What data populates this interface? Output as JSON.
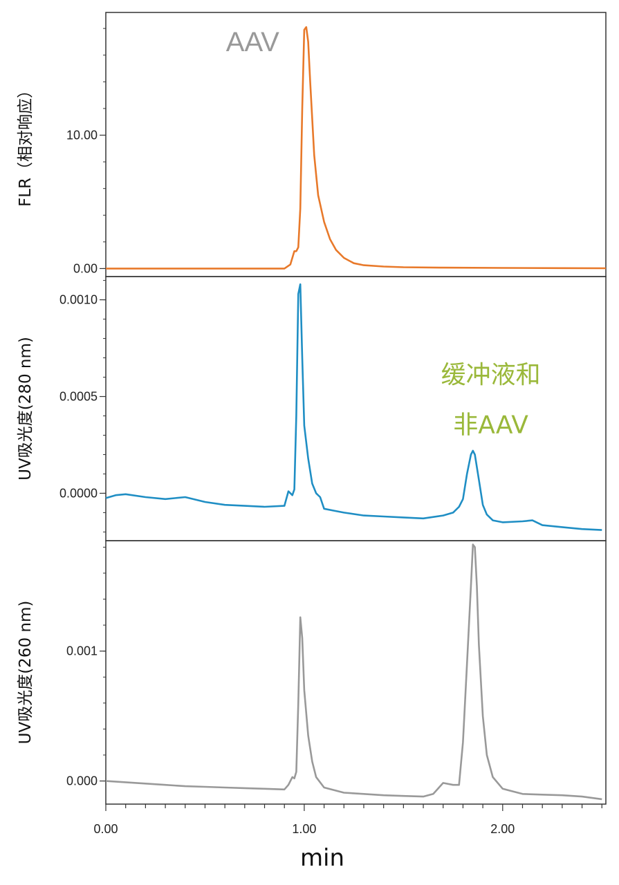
{
  "chart_data": {
    "type": "line",
    "xlabel": "min",
    "xlim": [
      0,
      2.52
    ],
    "x_ticks": [
      0,
      1,
      2
    ],
    "x_tick_labels": [
      "0.00",
      "1.00",
      "2.00"
    ],
    "panels": [
      {
        "id": "flr",
        "ylabel": "FLR（相对响应）",
        "ylim": [
          -0.6,
          19.2
        ],
        "y_ticks": [
          0,
          10
        ],
        "y_tick_labels": [
          "0.00",
          "10.00"
        ],
        "annotations": [
          {
            "text": "AAV",
            "x": 0.74,
            "y": 16.3,
            "color": "#999999"
          }
        ],
        "series": [
          {
            "color": "#E8792A",
            "x": [
              0.0,
              0.2,
              0.4,
              0.6,
              0.8,
              0.9,
              0.93,
              0.95,
              0.96,
              0.97,
              0.98,
              0.99,
              1.0,
              1.01,
              1.02,
              1.03,
              1.05,
              1.07,
              1.1,
              1.13,
              1.16,
              1.2,
              1.25,
              1.3,
              1.4,
              1.5,
              1.7,
              2.0,
              2.3,
              2.52
            ],
            "y": [
              0.0,
              0.0,
              0.0,
              0.0,
              0.0,
              0.0,
              0.3,
              1.3,
              1.3,
              1.6,
              4.5,
              12.0,
              17.9,
              18.1,
              17.0,
              14.0,
              8.5,
              5.5,
              3.5,
              2.2,
              1.4,
              0.8,
              0.4,
              0.25,
              0.15,
              0.1,
              0.07,
              0.05,
              0.03,
              0.02
            ]
          }
        ]
      },
      {
        "id": "uv280",
        "ylabel": "UV吸光度(280 nm)",
        "ylim": [
          -0.000245,
          0.00112
        ],
        "y_ticks": [
          0.0,
          0.0005,
          0.001
        ],
        "y_tick_labels": [
          "0.0000",
          "0.0005",
          "0.0010"
        ],
        "annotations": [
          {
            "text": "缓冲液和",
            "x": 1.94,
            "y": 0.00057,
            "color": "#9AB83A"
          },
          {
            "text": "非AAV",
            "x": 1.94,
            "y": 0.00031,
            "color": "#9AB83A"
          }
        ],
        "series": [
          {
            "color": "#1F8EC4",
            "x": [
              0.0,
              0.05,
              0.1,
              0.2,
              0.3,
              0.4,
              0.5,
              0.6,
              0.7,
              0.8,
              0.9,
              0.92,
              0.94,
              0.95,
              0.96,
              0.97,
              0.98,
              0.99,
              1.0,
              1.02,
              1.04,
              1.06,
              1.08,
              1.1,
              1.15,
              1.2,
              1.3,
              1.4,
              1.5,
              1.6,
              1.7,
              1.75,
              1.78,
              1.8,
              1.82,
              1.84,
              1.85,
              1.86,
              1.88,
              1.9,
              1.92,
              1.95,
              2.0,
              2.1,
              2.15,
              2.2,
              2.3,
              2.4,
              2.5
            ],
            "y": [
              -2.5e-05,
              -1e-05,
              -5e-06,
              -2e-05,
              -3e-05,
              -2e-05,
              -4.5e-05,
              -6e-05,
              -6.5e-05,
              -7e-05,
              -6.5e-05,
              1e-05,
              -1e-05,
              2e-05,
              0.0004,
              0.00103,
              0.00108,
              0.0007,
              0.00035,
              0.00018,
              5e-05,
              0.0,
              -2e-05,
              -8e-05,
              -9e-05,
              -0.0001,
              -0.000115,
              -0.00012,
              -0.000125,
              -0.00013,
              -0.000115,
              -0.0001,
              -7e-05,
              -3e-05,
              0.0001,
              0.0002,
              0.00022,
              0.0002,
              7e-05,
              -6e-05,
              -0.00011,
              -0.00014,
              -0.00015,
              -0.000145,
              -0.00014,
              -0.000165,
              -0.000175,
              -0.000185,
              -0.00019
            ]
          }
        ]
      },
      {
        "id": "uv260",
        "ylabel": "UV吸光度(260 nm)",
        "ylim": [
          -0.000178,
          0.00185
        ],
        "y_ticks": [
          0.0,
          0.001
        ],
        "y_tick_labels": [
          "0.000",
          "0.001"
        ],
        "annotations": [],
        "series": [
          {
            "color": "#999999",
            "x": [
              0.0,
              0.1,
              0.2,
              0.3,
              0.4,
              0.5,
              0.6,
              0.7,
              0.8,
              0.9,
              0.92,
              0.94,
              0.95,
              0.96,
              0.97,
              0.98,
              0.99,
              1.0,
              1.02,
              1.04,
              1.06,
              1.1,
              1.2,
              1.3,
              1.4,
              1.5,
              1.6,
              1.65,
              1.7,
              1.75,
              1.78,
              1.8,
              1.82,
              1.84,
              1.85,
              1.86,
              1.87,
              1.88,
              1.9,
              1.92,
              1.95,
              2.0,
              2.1,
              2.2,
              2.3,
              2.4,
              2.5
            ],
            "y": [
              0.0,
              -1e-05,
              -2e-05,
              -3e-05,
              -4e-05,
              -4.5e-05,
              -5e-05,
              -5.5e-05,
              -6e-05,
              -6.5e-05,
              -3e-05,
              3e-05,
              2e-05,
              7e-05,
              0.0006,
              0.00126,
              0.0011,
              0.0007,
              0.00035,
              0.00015,
              3e-05,
              -5e-05,
              -9e-05,
              -0.0001,
              -0.00011,
              -0.000115,
              -0.00012,
              -0.0001,
              -1.5e-05,
              -3e-05,
              -3e-05,
              0.0003,
              0.0009,
              0.0015,
              0.00182,
              0.0018,
              0.0015,
              0.00105,
              0.0005,
              0.0002,
              3e-05,
              -6e-05,
              -0.0001,
              -0.000105,
              -0.00011,
              -0.00012,
              -0.00014
            ]
          }
        ]
      }
    ]
  }
}
